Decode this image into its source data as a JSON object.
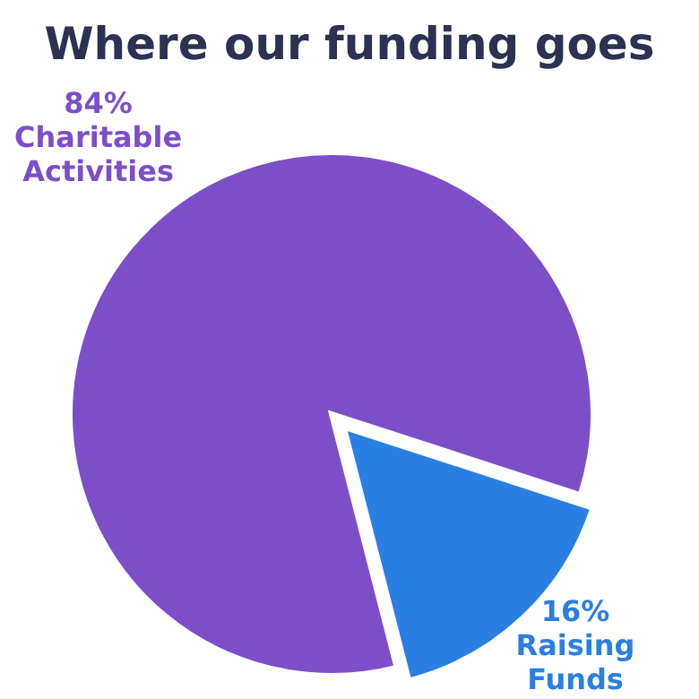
{
  "chart_data": {
    "type": "pie",
    "title": "Where our funding goes",
    "categories": [
      "Charitable Activities",
      "Raising Funds"
    ],
    "values": [
      84,
      16
    ],
    "colors": [
      "#7c4fc9",
      "#2a7fe2"
    ],
    "value_labels": [
      "84%",
      "16%"
    ]
  }
}
